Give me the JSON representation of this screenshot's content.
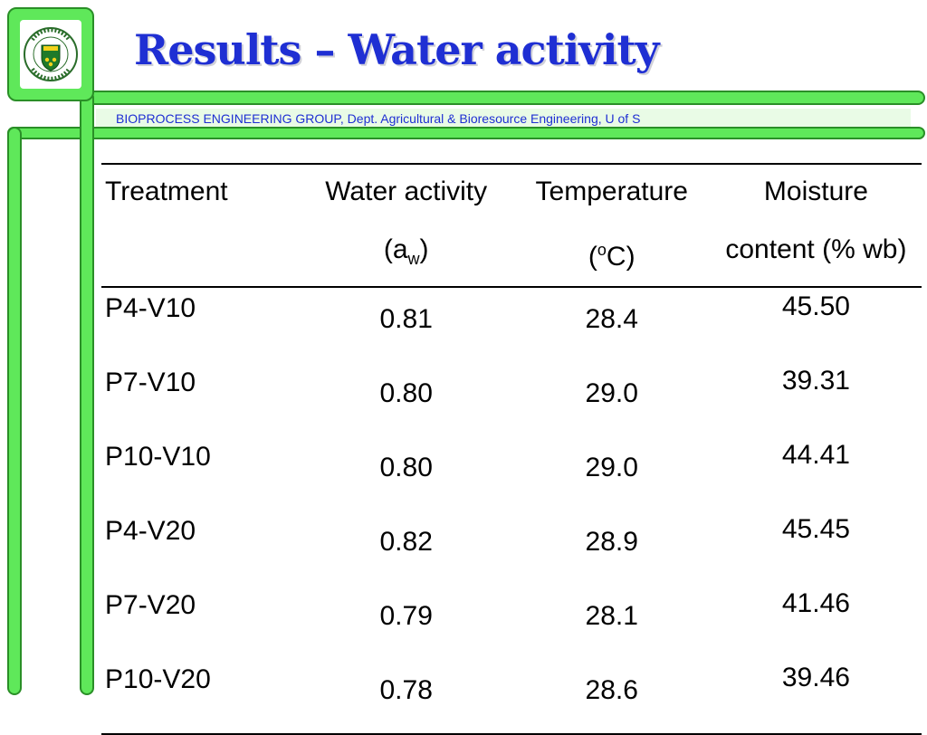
{
  "header": {
    "logo_alt": "University of Saskatchewan",
    "title": "Results – Water activity",
    "subtitle": "BIOPROCESS ENGINEERING GROUP, Dept. Agricultural & Bioresource Engineering, U of S"
  },
  "table": {
    "headers": {
      "treatment": "Treatment",
      "water_activity_line1": "Water activity",
      "water_activity_a": "(a",
      "water_activity_sub": "w",
      "water_activity_close": ")",
      "temperature_line1": "Temperature",
      "temperature_open": "(",
      "temperature_sup": "o",
      "temperature_unit": "C)",
      "moisture_line1": "Moisture",
      "moisture_line2": "content (% wb)"
    },
    "rows": [
      {
        "treatment": "P4-V10",
        "aw": "0.81",
        "temp": "28.4",
        "mc": "45.50"
      },
      {
        "treatment": "P7-V10",
        "aw": "0.80",
        "temp": "29.0",
        "mc": "39.31"
      },
      {
        "treatment": "P10-V10",
        "aw": "0.80",
        "temp": "29.0",
        "mc": "44.41"
      },
      {
        "treatment": "P4-V20",
        "aw": "0.82",
        "temp": "28.9",
        "mc": "45.45"
      },
      {
        "treatment": "P7-V20",
        "aw": "0.79",
        "temp": "28.1",
        "mc": "41.46"
      },
      {
        "treatment": "P10-V20",
        "aw": "0.78",
        "temp": "28.6",
        "mc": "39.46"
      }
    ]
  },
  "colors": {
    "frame_green": "#5fe85a",
    "title_blue": "#1f2fd3"
  }
}
